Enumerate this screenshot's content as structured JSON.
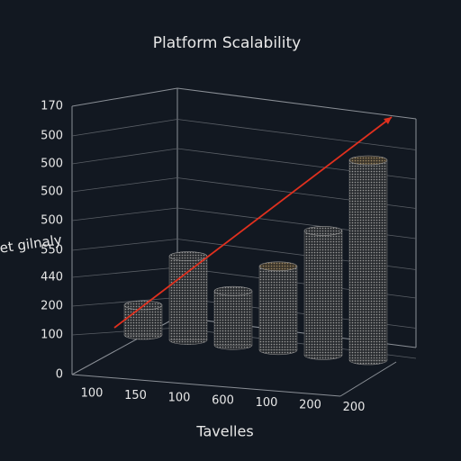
{
  "chart_data": {
    "type": "bar3d",
    "title": "Platform Scalability",
    "y_label": "Pet gilnaly",
    "x_label": "Tavelles",
    "y_labels": [
      "170",
      "500",
      "500",
      "500",
      "500",
      "550",
      "440",
      "200",
      "100",
      "0"
    ],
    "x_labels": [
      "100",
      "150",
      "100",
      "600",
      "100",
      "200",
      "200"
    ],
    "ylim": [
      0,
      100
    ],
    "values": [
      11,
      31,
      20,
      31,
      46,
      74
    ],
    "color": "#6e6e6e",
    "top_color": "#7a6a50",
    "line": {
      "values": [
        2,
        90
      ],
      "color": "#e0301e"
    }
  }
}
